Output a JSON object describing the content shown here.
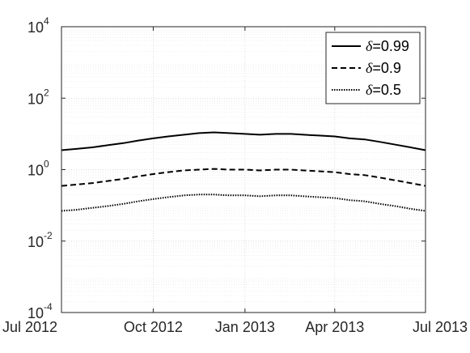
{
  "chart_data": {
    "type": "line",
    "title": "",
    "xlabel": "",
    "ylabel": "",
    "y_scale": "log",
    "ylim": [
      0.0001,
      10000
    ],
    "xlim": [
      "2012-07-01",
      "2013-07-01"
    ],
    "x_ticks": [
      {
        "date": "2012-07-01",
        "label": "Jul 2012"
      },
      {
        "date": "2012-10-01",
        "label": "Oct 2012"
      },
      {
        "date": "2013-01-01",
        "label": "Jan 2013"
      },
      {
        "date": "2013-04-01",
        "label": "Apr 2013"
      },
      {
        "date": "2013-07-01",
        "label": "Jul 2013"
      }
    ],
    "y_ticks": [
      {
        "value": 0.0001,
        "base": "10",
        "exp": "-4"
      },
      {
        "value": 0.01,
        "base": "10",
        "exp": "-2"
      },
      {
        "value": 1,
        "base": "10",
        "exp": "0"
      },
      {
        "value": 100,
        "base": "10",
        "exp": "2"
      },
      {
        "value": 10000,
        "base": "10",
        "exp": "4"
      }
    ],
    "grid": true,
    "minor_grid": true,
    "legend_position": "top-right",
    "series": [
      {
        "name": "δ=0.99",
        "legend_prefix": "δ",
        "legend_suffix": "=0.99",
        "line_style": "solid",
        "color": "#000000",
        "x": [
          "2012-07-01",
          "2012-07-16",
          "2012-08-01",
          "2012-08-16",
          "2012-09-01",
          "2012-09-16",
          "2012-10-01",
          "2012-10-16",
          "2012-11-01",
          "2012-11-16",
          "2012-12-01",
          "2012-12-16",
          "2013-01-01",
          "2013-01-16",
          "2013-02-01",
          "2013-02-16",
          "2013-03-01",
          "2013-03-16",
          "2013-04-01",
          "2013-04-16",
          "2013-05-01",
          "2013-05-16",
          "2013-06-01",
          "2013-06-16",
          "2013-07-01"
        ],
        "y": [
          3.5,
          3.8,
          4.2,
          4.8,
          5.5,
          6.5,
          7.5,
          8.5,
          9.5,
          10.5,
          11,
          10.5,
          10,
          9.5,
          10,
          10,
          9.5,
          9,
          8.5,
          7.5,
          7,
          6,
          5,
          4.2,
          3.5
        ]
      },
      {
        "name": "δ=0.9",
        "legend_prefix": "δ",
        "legend_suffix": "=0.9",
        "line_style": "dashed",
        "color": "#000000",
        "x": [
          "2012-07-01",
          "2012-07-16",
          "2012-08-01",
          "2012-08-16",
          "2012-09-01",
          "2012-09-16",
          "2012-10-01",
          "2012-10-16",
          "2012-11-01",
          "2012-11-16",
          "2012-12-01",
          "2012-12-16",
          "2013-01-01",
          "2013-01-16",
          "2013-02-01",
          "2013-02-16",
          "2013-03-01",
          "2013-03-16",
          "2013-04-01",
          "2013-04-16",
          "2013-05-01",
          "2013-05-16",
          "2013-06-01",
          "2013-06-16",
          "2013-07-01"
        ],
        "y": [
          0.35,
          0.38,
          0.42,
          0.48,
          0.55,
          0.65,
          0.75,
          0.85,
          0.95,
          1.0,
          1.05,
          1.0,
          1.0,
          0.95,
          1.0,
          1.0,
          0.95,
          0.9,
          0.85,
          0.75,
          0.7,
          0.6,
          0.5,
          0.42,
          0.35
        ]
      },
      {
        "name": "δ=0.5",
        "legend_prefix": "δ",
        "legend_suffix": "=0.5",
        "line_style": "dotted",
        "color": "#000000",
        "x": [
          "2012-07-01",
          "2012-07-16",
          "2012-08-01",
          "2012-08-16",
          "2012-09-01",
          "2012-09-16",
          "2012-10-01",
          "2012-10-16",
          "2012-11-01",
          "2012-11-16",
          "2012-12-01",
          "2012-12-16",
          "2013-01-01",
          "2013-01-16",
          "2013-02-01",
          "2013-02-16",
          "2013-03-01",
          "2013-03-16",
          "2013-04-01",
          "2013-04-16",
          "2013-05-01",
          "2013-05-16",
          "2013-06-01",
          "2013-06-16",
          "2013-07-01"
        ],
        "y": [
          0.07,
          0.075,
          0.085,
          0.095,
          0.11,
          0.13,
          0.15,
          0.17,
          0.19,
          0.2,
          0.2,
          0.19,
          0.19,
          0.18,
          0.19,
          0.19,
          0.18,
          0.17,
          0.16,
          0.14,
          0.13,
          0.11,
          0.095,
          0.08,
          0.07
        ]
      }
    ]
  }
}
